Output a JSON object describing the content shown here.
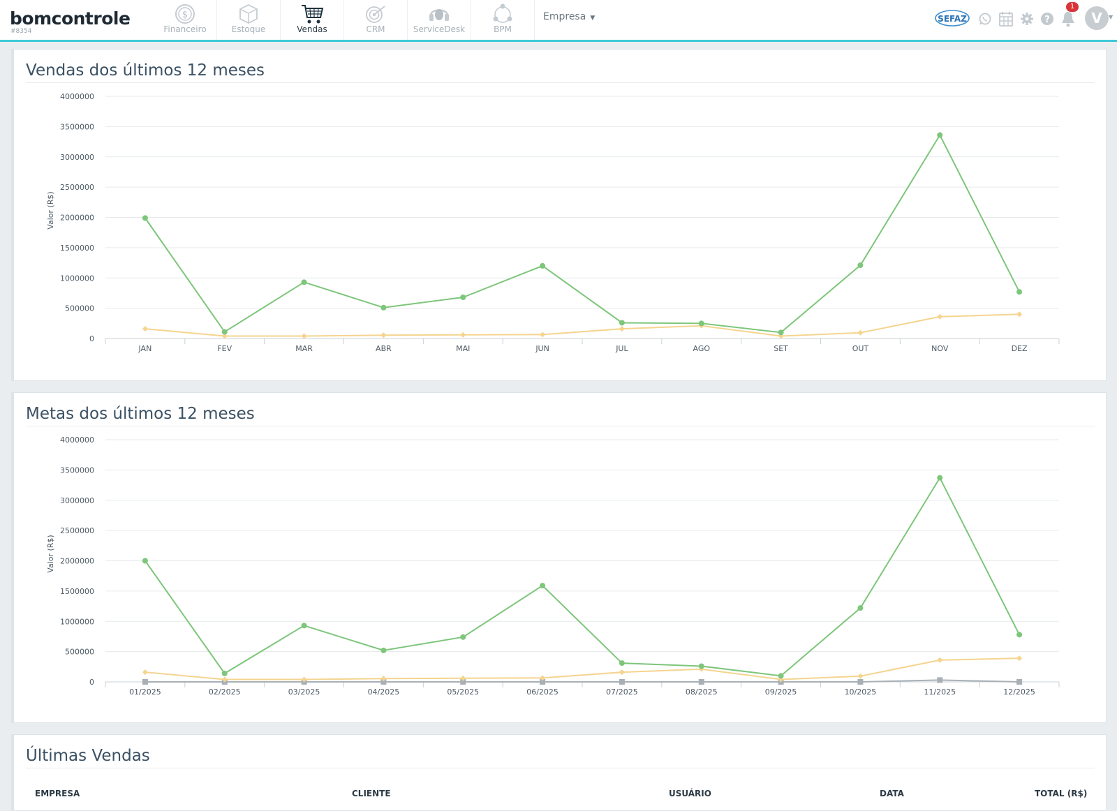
{
  "app": {
    "logo": "bomcontrole",
    "account_id": "#8354",
    "modules": [
      {
        "label": "Financeiro",
        "icon": "dollar-circle-icon",
        "active": false
      },
      {
        "label": "Estoque",
        "icon": "box-icon",
        "active": false
      },
      {
        "label": "Vendas",
        "icon": "cart-icon",
        "active": true
      },
      {
        "label": "CRM",
        "icon": "target-icon",
        "active": false
      },
      {
        "label": "ServiceDesk",
        "icon": "headset-icon",
        "active": false
      },
      {
        "label": "BPM",
        "icon": "workflow-icon",
        "active": false
      }
    ],
    "empresa_label": "Empresa",
    "sefaz_label": "SEFAZ",
    "notification_count": "1",
    "avatar_initial": "V"
  },
  "colors": {
    "accent": "#3ec9d6",
    "green": "#7dc67a",
    "yellow": "#f5d48f",
    "gray": "#a8b0b6"
  },
  "panels": {
    "sales_title": "Vendas dos últimos 12 meses",
    "goals_title": "Metas dos últimos 12 meses",
    "last_sales_title": "Últimas Vendas"
  },
  "chart_data": [
    {
      "type": "line",
      "title": "Vendas dos últimos 12 meses",
      "xlabel": "",
      "ylabel": "Valor (R$)",
      "ylim": [
        0,
        4000000
      ],
      "yticks": [
        "4000000",
        "3500000",
        "3000000",
        "2500000",
        "2000000",
        "1500000",
        "1000000",
        "500000",
        "0"
      ],
      "categories": [
        "JAN",
        "FEV",
        "MAR",
        "ABR",
        "MAI",
        "JUN",
        "JUL",
        "AGO",
        "SET",
        "OUT",
        "NOV",
        "DEZ"
      ],
      "grid": true,
      "series": [
        {
          "color": "#7dc67a",
          "marker": "circle",
          "values": [
            1990000,
            110000,
            930000,
            510000,
            680000,
            1200000,
            260000,
            250000,
            100000,
            1210000,
            3360000,
            770000
          ]
        },
        {
          "color": "#f5d48f",
          "marker": "diamond",
          "values": [
            160000,
            40000,
            40000,
            55000,
            60000,
            65000,
            160000,
            210000,
            40000,
            95000,
            360000,
            400000
          ]
        }
      ]
    },
    {
      "type": "line",
      "title": "Metas dos últimos 12 meses",
      "xlabel": "",
      "ylabel": "Valor (R$)",
      "ylim": [
        0,
        4000000
      ],
      "yticks": [
        "4000000",
        "3500000",
        "3000000",
        "2500000",
        "2000000",
        "1500000",
        "1000000",
        "500000",
        "0"
      ],
      "categories": [
        "01/2025",
        "02/2025",
        "03/2025",
        "04/2025",
        "05/2025",
        "06/2025",
        "07/2025",
        "08/2025",
        "09/2025",
        "10/2025",
        "11/2025",
        "12/2025"
      ],
      "grid": true,
      "series": [
        {
          "color": "#7dc67a",
          "marker": "circle",
          "values": [
            2000000,
            140000,
            930000,
            520000,
            740000,
            1590000,
            310000,
            260000,
            100000,
            1220000,
            3370000,
            780000
          ]
        },
        {
          "color": "#f5d48f",
          "marker": "diamond",
          "values": [
            160000,
            40000,
            40000,
            55000,
            60000,
            65000,
            160000,
            210000,
            40000,
            95000,
            360000,
            390000
          ]
        },
        {
          "color": "#a8b0b6",
          "marker": "square",
          "values": [
            0,
            0,
            0,
            0,
            0,
            0,
            0,
            0,
            0,
            0,
            30000,
            0
          ]
        }
      ]
    }
  ],
  "last_sales_table": {
    "headers": [
      "EMPRESA",
      "CLIENTE",
      "USUÁRIO",
      "DATA",
      "TOTAL (R$)"
    ]
  }
}
